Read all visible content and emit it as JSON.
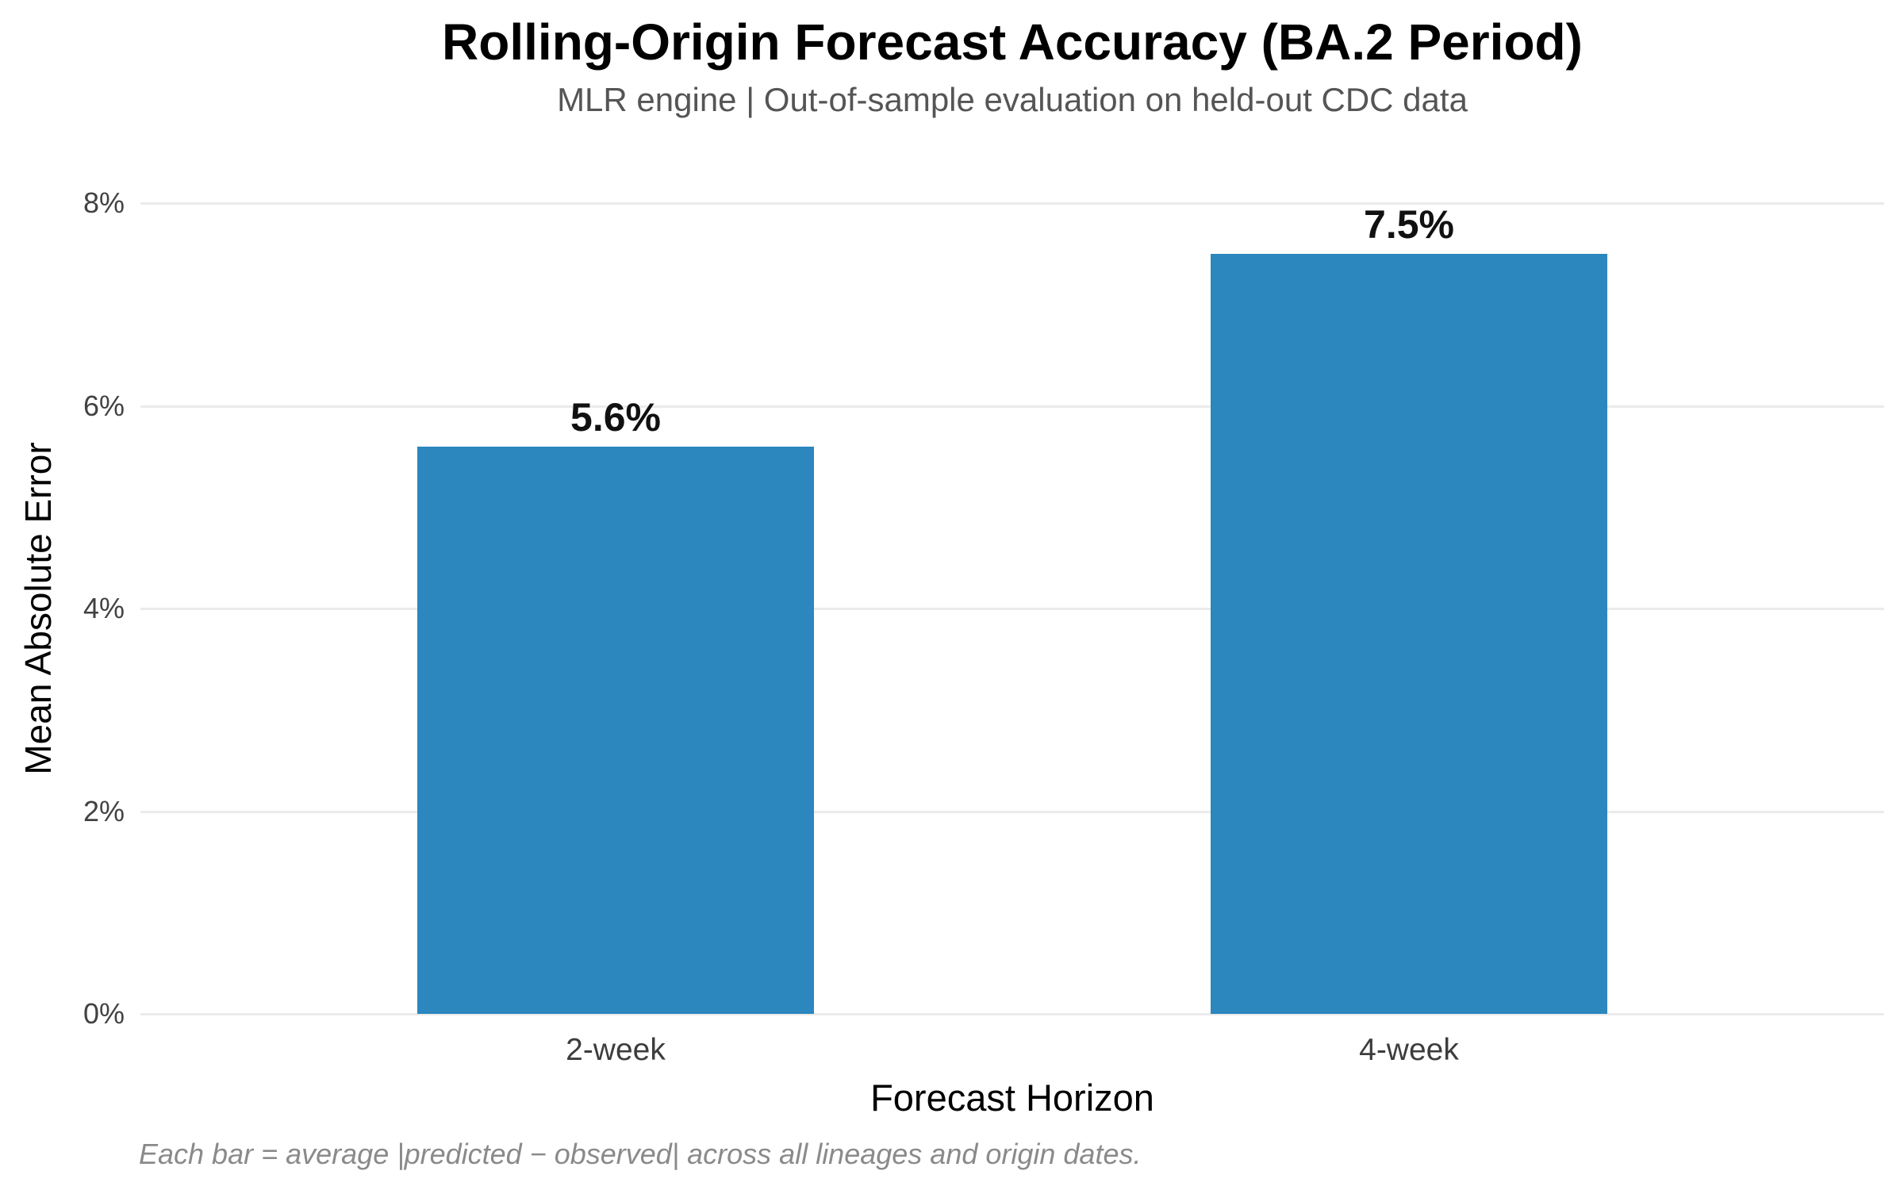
{
  "header": {
    "title": "Rolling-Origin Forecast Accuracy (BA.2 Period)",
    "subtitle": "MLR engine | Out-of-sample evaluation on held-out CDC data"
  },
  "caption": "Each bar = average |predicted − observed| across all lineages and origin dates.",
  "chart_data": {
    "type": "bar",
    "title": "Rolling-Origin Forecast Accuracy (BA.2 Period)",
    "subtitle": "MLR engine | Out-of-sample evaluation on held-out CDC data",
    "categories": [
      "2-week",
      "4-week"
    ],
    "values": [
      5.6,
      7.5
    ],
    "value_labels": [
      "5.6%",
      "7.5%"
    ],
    "xlabel": "Forecast Horizon",
    "ylabel": "Mean Absolute Error",
    "ylim": [
      0,
      8
    ],
    "yticks": [
      0,
      2,
      4,
      6,
      8
    ],
    "ytick_labels": [
      "0%",
      "2%",
      "4%",
      "6%",
      "8%"
    ],
    "grid": "horizontal",
    "legend": "none",
    "annotation": "Each bar = average |predicted − observed| across all lineages and origin dates.",
    "colors": {
      "bar": "#2b87bd",
      "gridline": "#ebebeb",
      "ytick_text": "#424242",
      "xtick_text": "#3d3d3d",
      "title_text": "#000000",
      "subtitle_text": "#555555",
      "caption_text": "#8a8a8a",
      "background": "#ffffff"
    }
  }
}
